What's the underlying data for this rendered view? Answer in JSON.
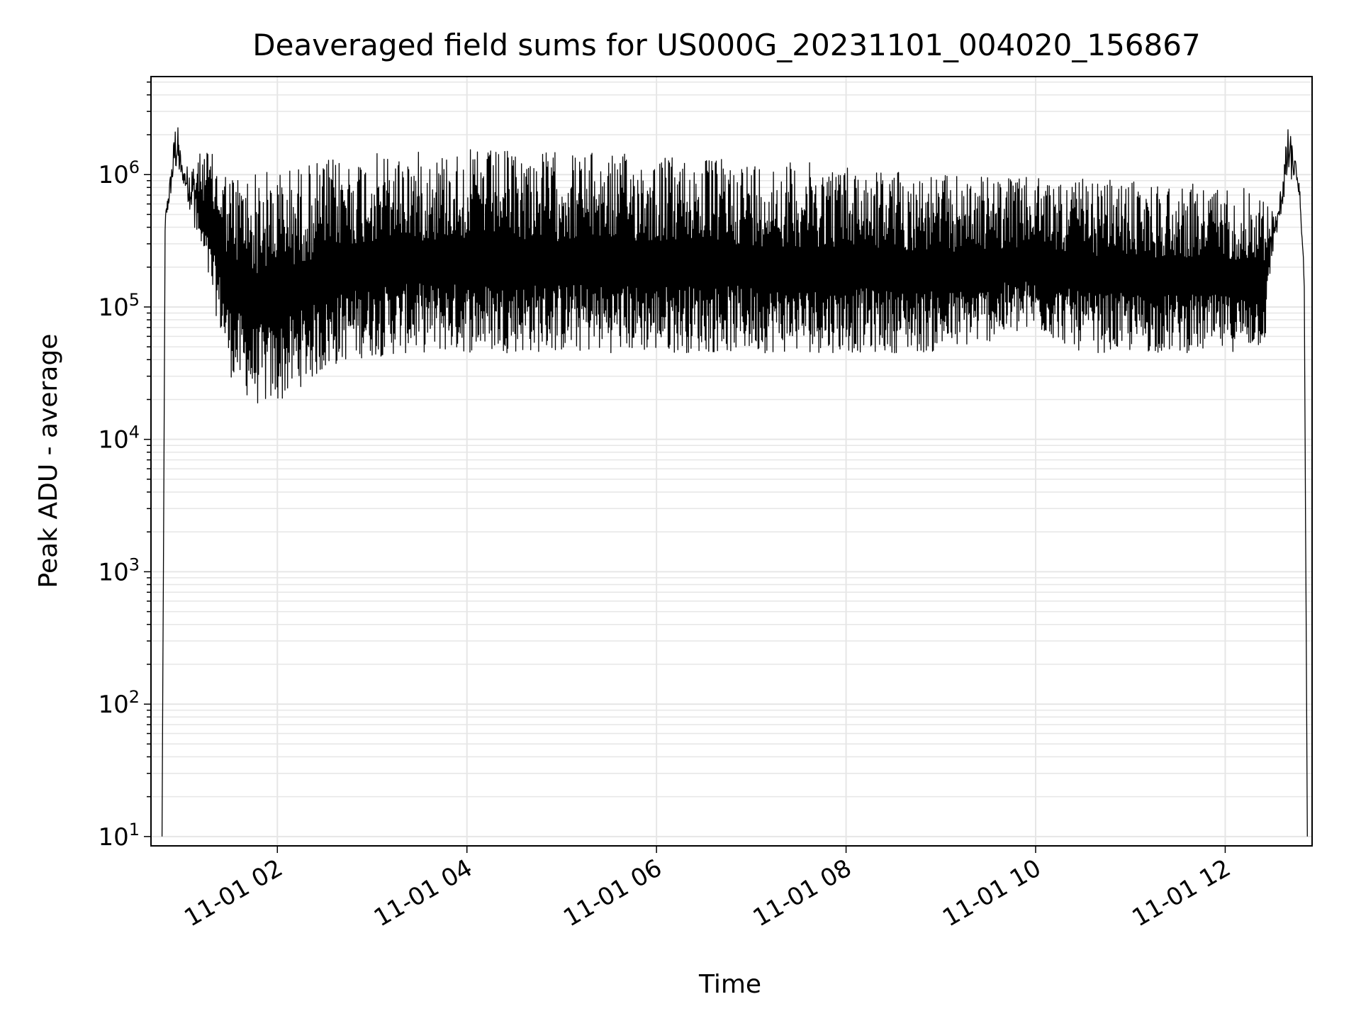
{
  "chart_data": {
    "type": "line",
    "title": "Deaveraged field sums for US000G_20231101_004020_156867",
    "xlabel": "Time",
    "ylabel": "Peak ADU - average",
    "y_scale": "log",
    "grid": true,
    "x_range": [
      "2023-11-01T00:40",
      "2023-11-01T12:55"
    ],
    "y_range": [
      8.5,
      5500000
    ],
    "x_ticks": [
      {
        "value": "2023-11-01T02:00",
        "label": "11-01 02"
      },
      {
        "value": "2023-11-01T04:00",
        "label": "11-01 04"
      },
      {
        "value": "2023-11-01T06:00",
        "label": "11-01 06"
      },
      {
        "value": "2023-11-01T08:00",
        "label": "11-01 08"
      },
      {
        "value": "2023-11-01T10:00",
        "label": "11-01 10"
      },
      {
        "value": "2023-11-01T12:00",
        "label": "11-01 12"
      }
    ],
    "y_ticks": [
      {
        "value": 10,
        "base": "10",
        "exp": "1"
      },
      {
        "value": 100,
        "base": "10",
        "exp": "2"
      },
      {
        "value": 1000,
        "base": "10",
        "exp": "3"
      },
      {
        "value": 10000,
        "base": "10",
        "exp": "4"
      },
      {
        "value": 100000,
        "base": "10",
        "exp": "5"
      },
      {
        "value": 1000000,
        "base": "10",
        "exp": "6"
      }
    ],
    "series": [
      {
        "color": "#000000",
        "upper_envelope": [
          [
            "2023-11-01T00:47",
            10
          ],
          [
            "2023-11-01T00:49",
            500000
          ],
          [
            "2023-11-01T00:53",
            1200000
          ],
          [
            "2023-11-01T00:56",
            3000000
          ],
          [
            "2023-11-01T01:00",
            1100000
          ],
          [
            "2023-11-01T01:15",
            1600000
          ],
          [
            "2023-11-01T01:30",
            1050000
          ],
          [
            "2023-11-01T02:00",
            1100000
          ],
          [
            "2023-11-01T02:30",
            1300000
          ],
          [
            "2023-11-01T03:00",
            1450000
          ],
          [
            "2023-11-01T04:00",
            1550000
          ],
          [
            "2023-11-01T05:00",
            1500000
          ],
          [
            "2023-11-01T06:00",
            1400000
          ],
          [
            "2023-11-01T07:00",
            1300000
          ],
          [
            "2023-11-01T08:00",
            1200000
          ],
          [
            "2023-11-01T09:00",
            1000000
          ],
          [
            "2023-11-01T10:00",
            950000
          ],
          [
            "2023-11-01T11:00",
            900000
          ],
          [
            "2023-11-01T11:45",
            850000
          ],
          [
            "2023-11-01T12:20",
            800000
          ],
          [
            "2023-11-01T12:33",
            500000
          ],
          [
            "2023-11-01T12:40",
            2400000
          ],
          [
            "2023-11-01T12:45",
            1200000
          ],
          [
            "2023-11-01T12:50",
            200000
          ],
          [
            "2023-11-01T12:52",
            10
          ]
        ],
        "lower_envelope": [
          [
            "2023-11-01T00:47",
            10
          ],
          [
            "2023-11-01T00:49",
            400000
          ],
          [
            "2023-11-01T00:55",
            1000000
          ],
          [
            "2023-11-01T01:00",
            900000
          ],
          [
            "2023-11-01T01:10",
            300000
          ],
          [
            "2023-11-01T01:20",
            100000
          ],
          [
            "2023-11-01T01:30",
            30000
          ],
          [
            "2023-11-01T01:45",
            18000
          ],
          [
            "2023-11-01T02:00",
            18000
          ],
          [
            "2023-11-01T02:15",
            25000
          ],
          [
            "2023-11-01T02:45",
            40000
          ],
          [
            "2023-11-01T03:30",
            45000
          ],
          [
            "2023-11-01T05:00",
            45000
          ],
          [
            "2023-11-01T07:00",
            45000
          ],
          [
            "2023-11-01T08:00",
            45000
          ],
          [
            "2023-11-01T09:00",
            45000
          ],
          [
            "2023-11-01T10:00",
            65000
          ],
          [
            "2023-11-01T10:30",
            45000
          ],
          [
            "2023-11-01T11:00",
            45000
          ],
          [
            "2023-11-01T12:00",
            45000
          ],
          [
            "2023-11-01T12:25",
            50000
          ],
          [
            "2023-11-01T12:30",
            250000
          ],
          [
            "2023-11-01T12:40",
            900000
          ],
          [
            "2023-11-01T12:47",
            900000
          ],
          [
            "2023-11-01T12:50",
            150000
          ],
          [
            "2023-11-01T12:52",
            10
          ]
        ]
      }
    ]
  }
}
